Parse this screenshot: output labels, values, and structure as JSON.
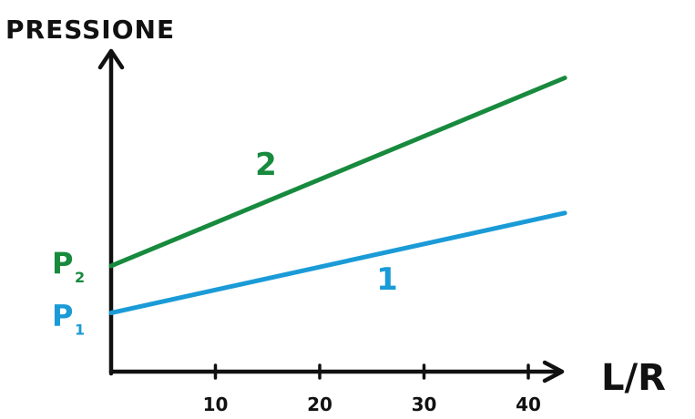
{
  "chart_data": {
    "type": "line",
    "ylabel": "PRESSIONE",
    "xlabel": "L/R",
    "xticks": [
      10,
      20,
      30,
      40
    ],
    "xlim": [
      0,
      44
    ],
    "series": [
      {
        "name": "1",
        "start_label": "P",
        "start_label_sub": "1",
        "color": "#1a9bd7",
        "x": [
          0,
          43.5
        ],
        "y": [
          1.0,
          2.7
        ]
      },
      {
        "name": "2",
        "start_label": "P",
        "start_label_sub": "2",
        "color": "#178a3e",
        "x": [
          0,
          43.5
        ],
        "y": [
          1.8,
          5.0
        ]
      }
    ]
  }
}
